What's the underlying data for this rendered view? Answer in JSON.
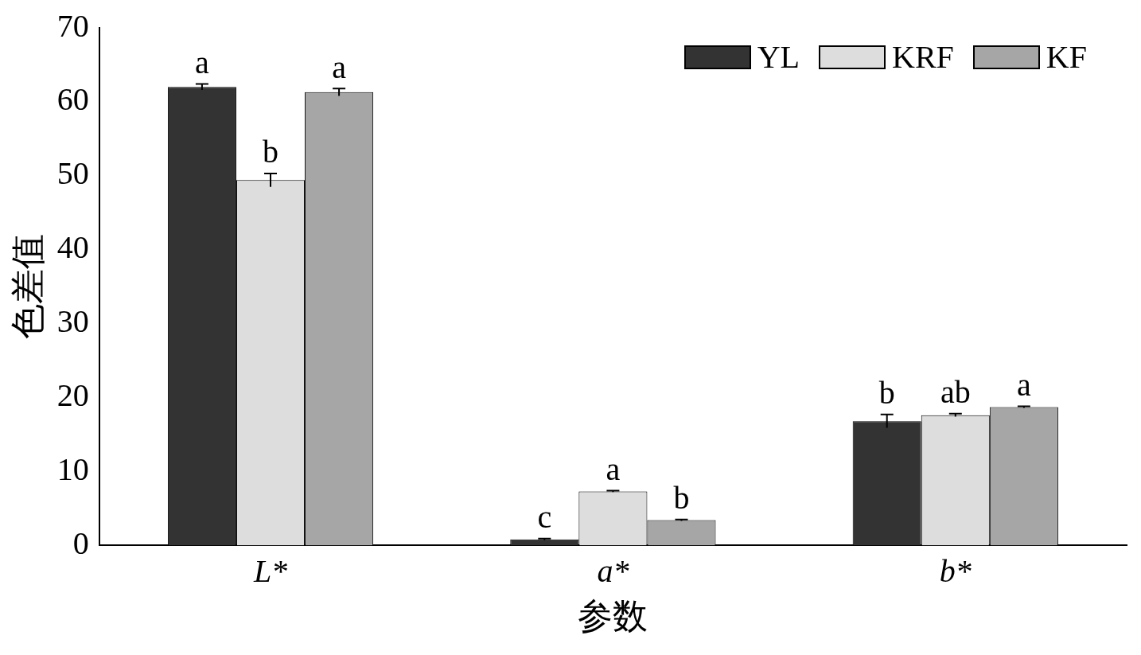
{
  "chart_data": {
    "type": "bar",
    "xlabel": "参数",
    "ylabel": "色差值",
    "categories": [
      "L*",
      "a*",
      "b*"
    ],
    "series": [
      {
        "name": "YL",
        "color": "#333333",
        "values": [
          62.0,
          0.8,
          16.8
        ],
        "errors": [
          0.4,
          0.1,
          0.9
        ],
        "value_labels": [
          "a",
          "c",
          "b"
        ]
      },
      {
        "name": "KRF",
        "color": "#dddddd",
        "values": [
          49.4,
          7.3,
          17.6
        ],
        "errors": [
          0.9,
          0.1,
          0.2
        ],
        "value_labels": [
          "b",
          "a",
          "ab"
        ]
      },
      {
        "name": "KF",
        "color": "#a6a6a6",
        "values": [
          61.3,
          3.4,
          18.7
        ],
        "errors": [
          0.5,
          0.1,
          0.1
        ],
        "value_labels": [
          "a",
          "b",
          "a"
        ]
      }
    ],
    "ylim": [
      0,
      70
    ],
    "yticks": [
      0,
      10,
      20,
      30,
      40,
      50,
      60,
      70
    ],
    "grid": false,
    "legend": "top right"
  }
}
